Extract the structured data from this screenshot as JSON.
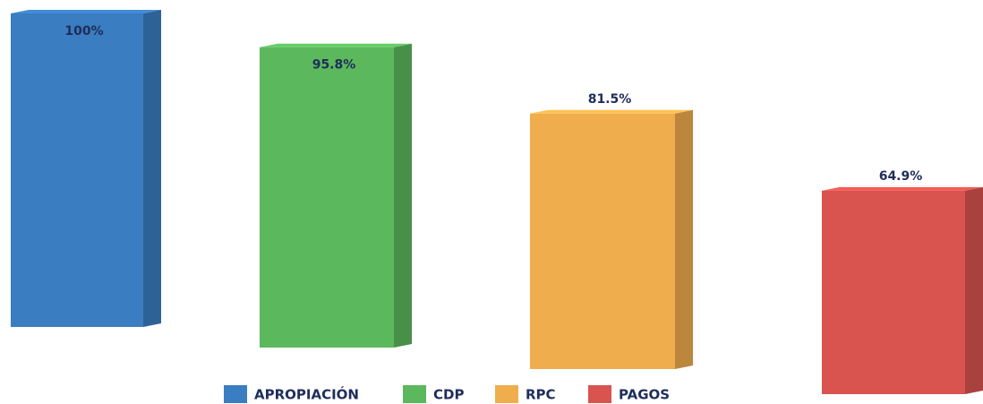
{
  "chart_data": {
    "type": "bar3d",
    "series": [
      {
        "name": "APROPIACIÓN",
        "color": "#3a7dc0",
        "values": [
          100
        ],
        "value_labels": [
          "100%"
        ]
      },
      {
        "name": "CDP",
        "color": "#5cb85c",
        "values": [
          95.8
        ],
        "value_labels": [
          "95.8%"
        ]
      },
      {
        "name": "RPC",
        "color": "#f0ad4e",
        "values": [
          81.5
        ],
        "value_labels": [
          "81.5%"
        ]
      },
      {
        "name": "PAGOS",
        "color": "#d9534f",
        "values": [
          64.9
        ],
        "value_labels": [
          "64.9%"
        ]
      }
    ]
  }
}
